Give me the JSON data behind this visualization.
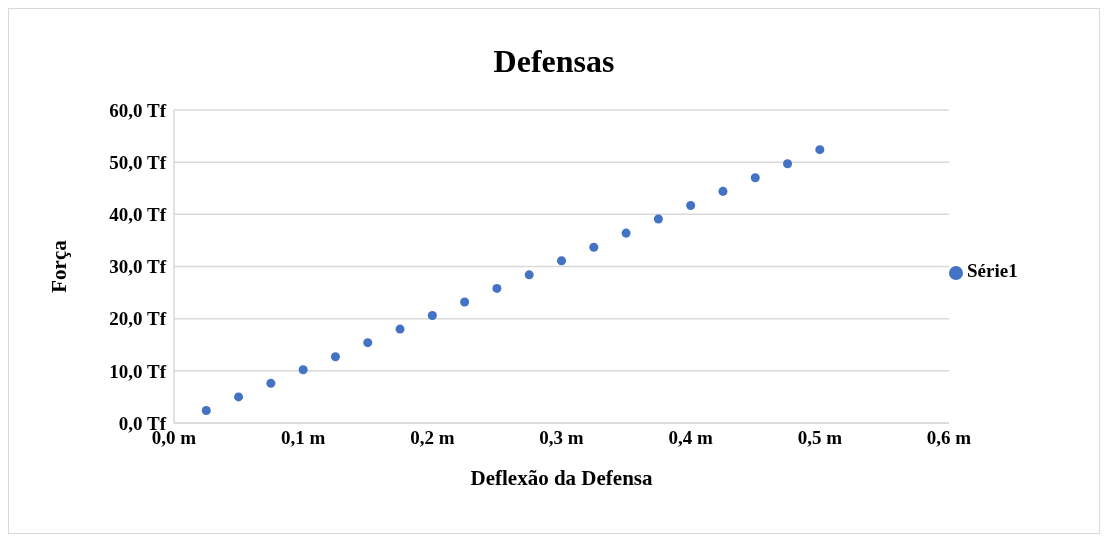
{
  "chart_data": {
    "type": "scatter",
    "title": "Defensas",
    "xlabel": "Deflexão da Defensa",
    "ylabel": "Força",
    "x": [
      0.025,
      0.05,
      0.075,
      0.1,
      0.125,
      0.15,
      0.175,
      0.2,
      0.225,
      0.25,
      0.275,
      0.3,
      0.325,
      0.35,
      0.375,
      0.4,
      0.425,
      0.45,
      0.475,
      0.5
    ],
    "series": [
      {
        "name": "Série1",
        "color": "#4472c4",
        "values": [
          2.4,
          5.0,
          7.6,
          10.2,
          12.7,
          15.4,
          18.0,
          20.6,
          23.2,
          25.8,
          28.4,
          31.1,
          33.7,
          36.4,
          39.1,
          41.7,
          44.4,
          47.0,
          49.7,
          52.4
        ]
      }
    ],
    "xlim": [
      0,
      0.6
    ],
    "xticks": [
      {
        "value": 0,
        "label": "0,0 m"
      },
      {
        "value": 0.1,
        "label": "0,1 m"
      },
      {
        "value": 0.2,
        "label": "0,2 m"
      },
      {
        "value": 0.3,
        "label": "0,3 m"
      },
      {
        "value": 0.4,
        "label": "0,4 m"
      },
      {
        "value": 0.5,
        "label": "0,5 m"
      },
      {
        "value": 0.6,
        "label": "0,6 m"
      }
    ],
    "ylim": [
      0,
      60
    ],
    "yticks": [
      {
        "value": 0,
        "label": "0,0 Tf"
      },
      {
        "value": 10,
        "label": "10,0 Tf"
      },
      {
        "value": 20,
        "label": "20,0 Tf"
      },
      {
        "value": 30,
        "label": "30,0 Tf"
      },
      {
        "value": 40,
        "label": "40,0 Tf"
      },
      {
        "value": 50,
        "label": "50,0 Tf"
      },
      {
        "value": 60,
        "label": "60,0 Tf"
      }
    ],
    "grid": "y",
    "legend": "right",
    "marker": "circle"
  }
}
